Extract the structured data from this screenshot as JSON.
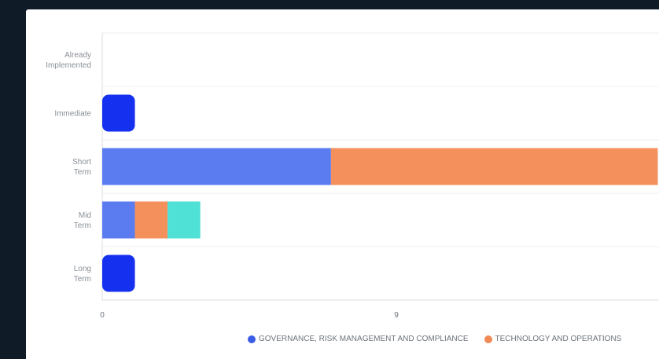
{
  "chart_data": {
    "type": "bar",
    "orientation": "horizontal",
    "stacked": true,
    "categories": [
      "Already Implemented",
      "Immediate",
      "Short Term",
      "Mid Term",
      "Long Term"
    ],
    "category_label_lines": [
      [
        "Already",
        "Implemented"
      ],
      [
        "Immediate"
      ],
      [
        "Short",
        "Term"
      ],
      [
        "Mid",
        "Term"
      ],
      [
        "Long",
        "Term"
      ]
    ],
    "series": [
      {
        "name": "GOVERNANCE, RISK MANAGEMENT AND COMPLIANCE",
        "color": "#5b7cf0",
        "values": [
          0,
          1,
          7,
          1,
          1
        ]
      },
      {
        "name": "TECHNOLOGY AND OPERATIONS",
        "color": "#f4905c",
        "values": [
          0,
          0,
          10,
          1,
          0
        ]
      },
      {
        "name": "",
        "color": "#4fe0d6",
        "values": [
          0,
          0,
          0,
          1,
          0
        ]
      }
    ],
    "x_ticks": [
      0,
      9
    ],
    "xlim": [
      0,
      17
    ],
    "grid": true,
    "legend_position": "bottom"
  }
}
